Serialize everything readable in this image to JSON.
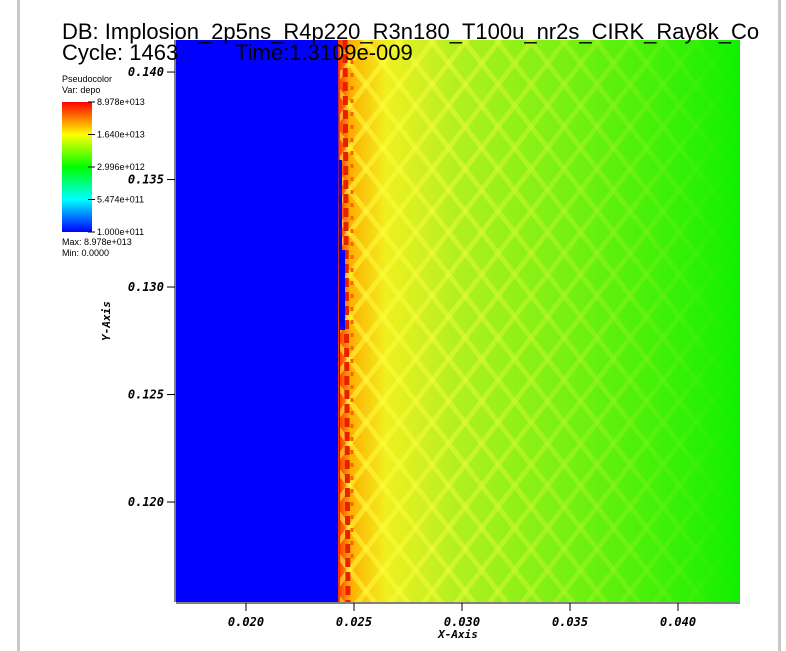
{
  "chart_data": {
    "type": "pseudocolor",
    "title": "DB: Implosion_2p5ns_R4p220_R3n180_T100u_nr2s_CIRK_Ray8k_Co",
    "cycle": "Cycle: 1463",
    "time": "Time:1.3109e-009",
    "x_label": "X-Axis",
    "y_label": "Y-Axis",
    "xlim": [
      0.01676,
      0.04287
    ],
    "xticks": [
      {
        "value": 0.02,
        "label": "0.020"
      },
      0.025,
      {
        "value": 0.03,
        "label": "0.030"
      },
      0.035,
      {
        "value": 0.04,
        "label": "0.040"
      }
    ],
    "ylim": [
      0.11535,
      0.14149
    ],
    "yticks": [
      {
        "value": 0.12,
        "label": "0.120"
      },
      0.125,
      {
        "value": 0.13,
        "label": "0.130"
      },
      0.135,
      {
        "value": 0.14,
        "label": "0.140"
      }
    ],
    "legend": {
      "title": "Pseudocolor",
      "variable": "Var: depo",
      "log_scale": true,
      "range": [
        100000000000.0,
        89780000000000.0
      ],
      "ticks": [
        {
          "value": 89780000000000.0,
          "label": "8.978e+013"
        },
        {
          "value": 16400000000000.0,
          "label": "1.640e+013"
        },
        {
          "value": 2996000000000.0,
          "label": "2.996e+012"
        },
        {
          "value": 547400000000.0,
          "label": "5.474e+011"
        },
        {
          "value": 100000000000.0,
          "label": "1.000e+011"
        }
      ],
      "max": "Max: 8.978e+013",
      "min": "Min: 0.0000"
    }
  }
}
